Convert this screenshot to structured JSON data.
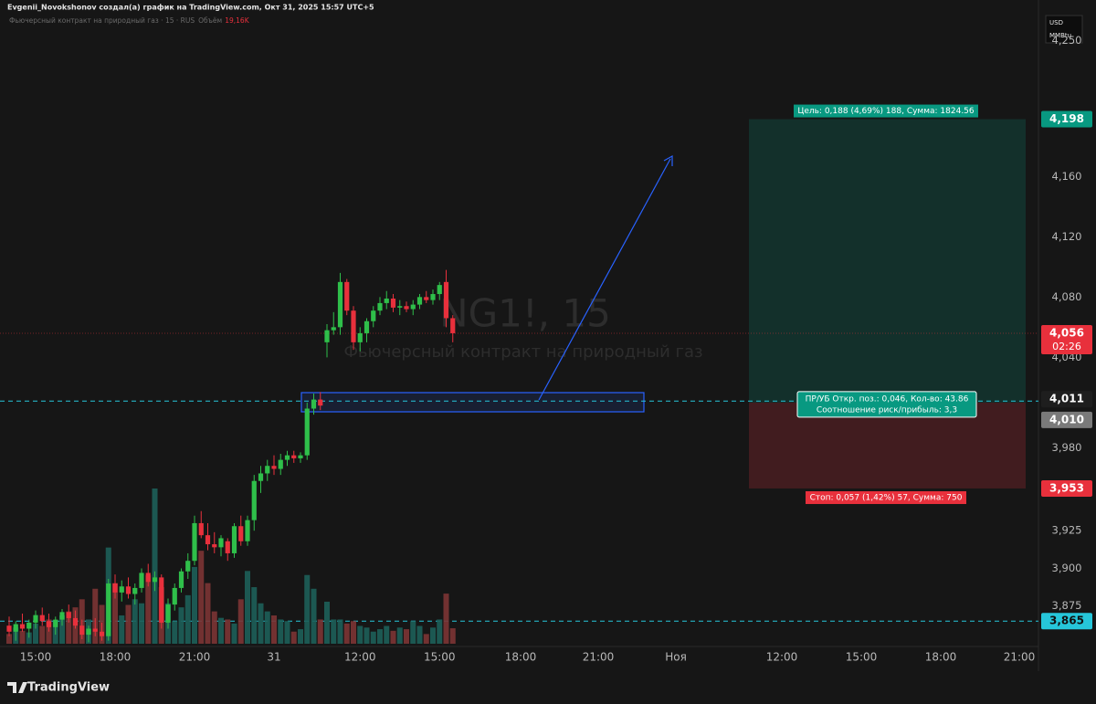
{
  "header": {
    "author_line": "Evgenii_Novokshonov создал(а) график на TradingView.com, Окт 31, 2025 15:57 UTC+5",
    "symbol_line": "Фьючерсный контракт на природный газ · 15 · RUS",
    "volume_label": "Объём",
    "volume_value": "19,16K"
  },
  "currency": "USD",
  "unit": "MMBtu",
  "watermark": {
    "symbol": "NG1!, 15",
    "description": "Фьючерсный контракт на природный газ"
  },
  "branding": "TradingView",
  "chart_data": {
    "type": "candlestick",
    "grid": false,
    "categories": [
      null,
      null,
      null,
      null,
      "15:00",
      null,
      null,
      null,
      null,
      null,
      null,
      null,
      null,
      null,
      null,
      null,
      "18:00",
      null,
      null,
      null,
      null,
      null,
      null,
      null,
      null,
      null,
      null,
      null,
      "21:00",
      null,
      null,
      null,
      null,
      null,
      null,
      null,
      null,
      null,
      null,
      null,
      "31",
      null,
      null,
      null,
      null,
      null,
      null,
      null,
      null,
      null,
      null,
      null,
      null,
      "12:00",
      null,
      null,
      null,
      null,
      null,
      null,
      null,
      null,
      null,
      null,
      null,
      "15:00",
      null,
      null
    ],
    "open": [
      3.862,
      3.858,
      3.863,
      3.86,
      3.864,
      3.869,
      3.865,
      3.861,
      3.866,
      3.871,
      3.867,
      3.862,
      3.856,
      3.86,
      3.858,
      3.855,
      3.89,
      3.884,
      3.888,
      3.883,
      3.887,
      3.897,
      3.891,
      3.894,
      3.864,
      3.876,
      3.887,
      3.898,
      3.905,
      3.93,
      3.922,
      3.916,
      3.914,
      3.918,
      3.91,
      3.928,
      3.918,
      3.932,
      3.958,
      3.963,
      3.968,
      3.966,
      3.972,
      3.975,
      3.973,
      3.975,
      4.006,
      4.012,
      4.05,
      4.058,
      4.06,
      4.09,
      4.071,
      4.05,
      4.056,
      4.064,
      4.071,
      4.076,
      4.079,
      4.073,
      4.074,
      4.072,
      4.075,
      4.08,
      4.078,
      4.082,
      4.09,
      4.066
    ],
    "high": [
      3.868,
      3.865,
      3.87,
      3.866,
      3.872,
      3.874,
      3.87,
      3.868,
      3.873,
      3.876,
      3.872,
      3.866,
      3.862,
      3.867,
      3.864,
      3.893,
      3.896,
      3.892,
      3.894,
      3.89,
      3.9,
      3.903,
      3.898,
      3.896,
      3.88,
      3.89,
      3.9,
      3.91,
      3.935,
      3.938,
      3.93,
      3.924,
      3.922,
      3.92,
      3.93,
      3.935,
      3.935,
      3.962,
      3.968,
      3.972,
      3.975,
      3.976,
      3.978,
      3.978,
      3.977,
      4.01,
      4.016,
      4.017,
      4.062,
      4.07,
      4.096,
      4.092,
      4.074,
      4.06,
      4.066,
      4.074,
      4.08,
      4.084,
      4.082,
      4.078,
      4.077,
      4.078,
      4.082,
      4.084,
      4.085,
      4.09,
      4.098,
      4.068
    ],
    "low": [
      3.855,
      3.852,
      3.858,
      3.854,
      3.86,
      3.862,
      3.858,
      3.856,
      3.862,
      3.864,
      3.86,
      3.853,
      3.851,
      3.855,
      3.852,
      3.852,
      3.88,
      3.878,
      3.88,
      3.876,
      3.884,
      3.888,
      3.885,
      3.86,
      3.86,
      3.872,
      3.884,
      3.893,
      3.902,
      3.92,
      3.912,
      3.91,
      3.908,
      3.905,
      3.907,
      3.915,
      3.915,
      3.925,
      3.95,
      3.958,
      3.962,
      3.962,
      3.968,
      3.97,
      3.97,
      3.972,
      4.002,
      4.005,
      4.04,
      4.055,
      4.055,
      4.068,
      4.045,
      4.044,
      4.05,
      4.06,
      4.068,
      4.072,
      4.07,
      4.068,
      4.07,
      4.068,
      4.072,
      4.076,
      4.075,
      4.078,
      4.06,
      4.05
    ],
    "close": [
      3.858,
      3.863,
      3.86,
      3.864,
      3.869,
      3.865,
      3.861,
      3.866,
      3.871,
      3.867,
      3.862,
      3.856,
      3.86,
      3.858,
      3.855,
      3.89,
      3.884,
      3.888,
      3.883,
      3.887,
      3.897,
      3.891,
      3.894,
      3.864,
      3.876,
      3.887,
      3.898,
      3.905,
      3.93,
      3.922,
      3.916,
      3.914,
      3.92,
      3.91,
      3.928,
      3.918,
      3.932,
      3.958,
      3.963,
      3.968,
      3.966,
      3.972,
      3.975,
      3.973,
      3.975,
      4.006,
      4.012,
      4.008,
      4.058,
      4.06,
      4.09,
      4.071,
      4.05,
      4.056,
      4.064,
      4.071,
      4.076,
      4.079,
      4.073,
      4.074,
      4.072,
      4.075,
      4.08,
      4.078,
      4.082,
      4.088,
      4.066,
      4.056
    ],
    "volume": [
      12,
      20,
      16,
      14,
      25,
      22,
      30,
      28,
      35,
      40,
      45,
      55,
      30,
      68,
      48,
      119,
      75,
      35,
      48,
      55,
      50,
      85,
      192,
      70,
      50,
      28,
      45,
      60,
      95,
      115,
      75,
      40,
      32,
      30,
      25,
      55,
      90,
      70,
      50,
      40,
      35,
      30,
      28,
      15,
      18,
      85,
      68,
      30,
      52,
      30,
      30,
      25,
      28,
      22,
      20,
      15,
      18,
      22,
      16,
      20,
      18,
      28,
      22,
      12,
      20,
      30,
      62,
      19.16
    ],
    "up_color": "#2fbf4a",
    "down_color": "#e8303c",
    "volume_up_color": "#1d5f59",
    "volume_down_color": "#7c3434",
    "ylim": [
      3.85,
      4.268
    ],
    "yticks": [
      {
        "value": 4.25,
        "label": "4,250"
      },
      {
        "value": 4.16,
        "label": "4,160"
      },
      {
        "value": 4.12,
        "label": "4,120"
      },
      {
        "value": 4.08,
        "label": "4,080"
      },
      {
        "value": 4.04,
        "label": "4,040"
      },
      {
        "value": 3.98,
        "label": "3,980"
      },
      {
        "value": 3.925,
        "label": "3,925"
      },
      {
        "value": 3.9,
        "label": "3,900"
      },
      {
        "value": 3.875,
        "label": "3,875"
      }
    ],
    "future_xlabels": [
      "18:00",
      "21:00",
      "Ноя",
      "12:00",
      "15:00",
      "18:00",
      "21:00"
    ],
    "last": {
      "value": 4.056,
      "label": "4,056",
      "countdown": "02:26"
    },
    "line_levels": [
      {
        "value": 4.011,
        "label": "4,011"
      },
      {
        "value": 3.865,
        "label": "3,865"
      }
    ],
    "position": {
      "entry": {
        "value": 4.01,
        "label": "4,010"
      },
      "target": {
        "value": 4.198,
        "label": "4,198"
      },
      "stop": {
        "value": 3.953,
        "label": "3,953"
      },
      "target_text": "Цель: 0,188 (4,69%) 188, Сумма: 1824.56",
      "center_text": "ПР/УБ Откр. поз.: 0,046, Кол-во: 43.86",
      "ratio_text": "Соотношение риск/прибыль: 3,3",
      "stop_text": "Стоп: 0,057 (1,42%) 57, Сумма: 750"
    }
  }
}
